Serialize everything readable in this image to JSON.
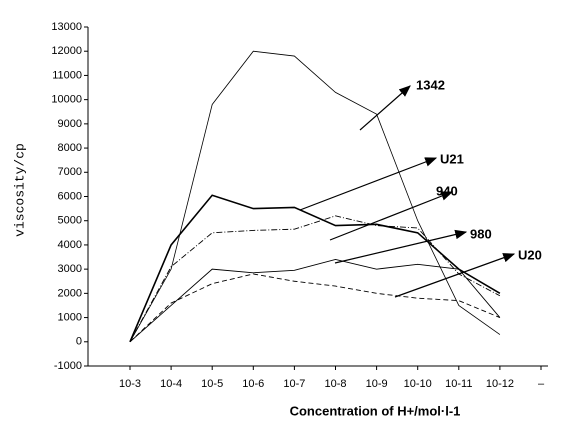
{
  "chart_data": {
    "type": "line",
    "xlabel": "Concentration of  H+/mol·l-1",
    "ylabel": "viscosity/cp",
    "categories": [
      "10-3",
      "10-4",
      "10-5",
      "10-6",
      "10-7",
      "10-8",
      "10-9",
      "10-10",
      "10-11",
      "10-12",
      "–"
    ],
    "series": [
      {
        "name": "1342",
        "color": "#000000",
        "values": [
          0,
          3000,
          9800,
          12000,
          11800,
          10300,
          9400,
          5000,
          1500,
          300,
          null
        ]
      },
      {
        "name": "U21",
        "color": "#000000",
        "values": [
          0,
          4000,
          6050,
          5500,
          5550,
          4800,
          4850,
          4500,
          3000,
          2000,
          null
        ]
      },
      {
        "name": "940",
        "color": "#000000",
        "values": [
          0,
          3100,
          4500,
          4600,
          4650,
          5200,
          4800,
          4700,
          2800,
          1900,
          null
        ]
      },
      {
        "name": "980",
        "color": "#000000",
        "values": [
          0,
          1500,
          3000,
          2850,
          2950,
          3400,
          3000,
          3200,
          3000,
          1000,
          null
        ]
      },
      {
        "name": "U20",
        "color": "#000000",
        "values": [
          0,
          1600,
          2400,
          2800,
          2500,
          2300,
          2000,
          1800,
          1700,
          1000,
          null
        ]
      }
    ],
    "ylim": [
      -1000,
      13000
    ],
    "yticks": [
      -1000,
      0,
      1000,
      2000,
      3000,
      4000,
      5000,
      6000,
      7000,
      8000,
      9000,
      10000,
      11000,
      12000,
      13000
    ],
    "grid": false
  }
}
